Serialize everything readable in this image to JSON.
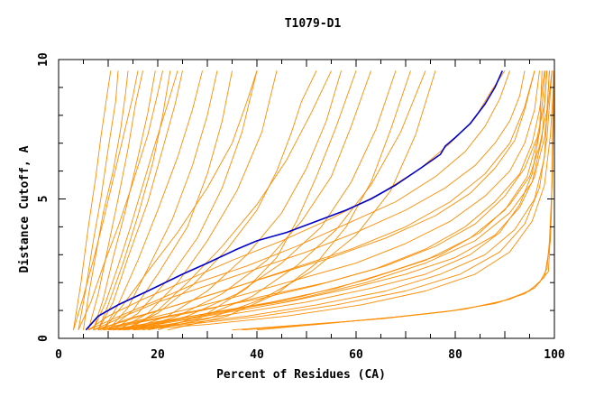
{
  "chart_data": {
    "type": "line",
    "title": "T1079-D1",
    "xlabel": "Percent of Residues (CA)",
    "ylabel": "Distance Cutoff, A",
    "xlim": [
      0,
      100
    ],
    "ylim": [
      0,
      10
    ],
    "x_ticks": [
      0,
      20,
      40,
      60,
      80,
      100
    ],
    "y_ticks": [
      0,
      5,
      10
    ],
    "grid": false,
    "legend": "none",
    "colors": {
      "models": "#ff8c00",
      "highlight": "#0000cc",
      "axis": "#000000"
    },
    "highlight_series": {
      "x": [
        5.5,
        8,
        12,
        18,
        25,
        30,
        36,
        40,
        46,
        52,
        58,
        63,
        68,
        73,
        77,
        78,
        80,
        83,
        86,
        88,
        89.5
      ],
      "y": [
        0.3,
        0.8,
        1.2,
        1.7,
        2.3,
        2.7,
        3.2,
        3.5,
        3.8,
        4.2,
        4.6,
        5.0,
        5.5,
        6.1,
        6.6,
        6.9,
        7.2,
        7.7,
        8.4,
        9.0,
        9.6
      ]
    },
    "series": [
      {
        "x": [
          5,
          6,
          7.5,
          9,
          11,
          12.5,
          13.5,
          14
        ],
        "y": [
          0.3,
          1.5,
          3,
          4.5,
          6,
          7.5,
          8.8,
          9.6
        ]
      },
      {
        "x": [
          4,
          5.5,
          7,
          8.5,
          10,
          11.5,
          12
        ],
        "y": [
          0.3,
          1.8,
          3.5,
          5,
          6.8,
          8.5,
          9.6
        ]
      },
      {
        "x": [
          3,
          4.5,
          6,
          7.5,
          8.5,
          10,
          10.5
        ],
        "y": [
          0.3,
          2,
          4,
          5.8,
          7.2,
          9,
          9.6
        ]
      },
      {
        "x": [
          6,
          8,
          10,
          12,
          14,
          15.5,
          17
        ],
        "y": [
          0.3,
          1.6,
          3.3,
          5,
          6.8,
          8.4,
          9.6
        ]
      },
      {
        "x": [
          7,
          9,
          11,
          13.5,
          16,
          18,
          19.5
        ],
        "y": [
          0.3,
          1.4,
          2.9,
          4.6,
          6.5,
          8.1,
          9.6
        ]
      },
      {
        "x": [
          8,
          10,
          13,
          16,
          19,
          21,
          22.5
        ],
        "y": [
          0.3,
          1.2,
          2.7,
          4.4,
          6.3,
          8,
          9.6
        ]
      },
      {
        "x": [
          8,
          11,
          14,
          18,
          21,
          23.5,
          25
        ],
        "y": [
          0.3,
          1.3,
          2.9,
          4.9,
          6.8,
          8.4,
          9.6
        ]
      },
      {
        "x": [
          9,
          12,
          16,
          20,
          24,
          27,
          29
        ],
        "y": [
          0.3,
          1.2,
          2.8,
          4.6,
          6.5,
          8.2,
          9.6
        ]
      },
      {
        "x": [
          10,
          14,
          18,
          23,
          27,
          30,
          32
        ],
        "y": [
          0.3,
          1.1,
          2.5,
          4.3,
          6.2,
          8,
          9.6
        ]
      },
      {
        "x": [
          10,
          15,
          20,
          26,
          30,
          33,
          35
        ],
        "y": [
          0.3,
          1,
          2.3,
          4,
          5.9,
          7.8,
          9.6
        ]
      },
      {
        "x": [
          11,
          16,
          22,
          28,
          33,
          37,
          40
        ],
        "y": [
          0.3,
          0.9,
          2.1,
          3.6,
          5.4,
          7.4,
          9.6
        ]
      },
      {
        "x": [
          12,
          18,
          24,
          30,
          36,
          41,
          44
        ],
        "y": [
          0.3,
          0.9,
          2,
          3.5,
          5.3,
          7.4,
          9.6
        ]
      },
      {
        "x": [
          13,
          20,
          27,
          34,
          40,
          44,
          47,
          49,
          52
        ],
        "y": [
          0.3,
          0.9,
          1.9,
          3.2,
          4.6,
          6,
          7.4,
          8.5,
          9.6
        ]
      },
      {
        "x": [
          14,
          22,
          30,
          38,
          45,
          50,
          54,
          57
        ],
        "y": [
          0.3,
          0.8,
          1.7,
          3,
          4.5,
          6.1,
          7.8,
          9.6
        ]
      },
      {
        "x": [
          15,
          24,
          33,
          42,
          49,
          55,
          59,
          63
        ],
        "y": [
          0.3,
          0.8,
          1.6,
          2.8,
          4.2,
          5.8,
          7.6,
          9.6
        ]
      },
      {
        "x": [
          16,
          26,
          36,
          45,
          53,
          59,
          64,
          68
        ],
        "y": [
          0.3,
          0.8,
          1.6,
          2.7,
          4,
          5.6,
          7.5,
          9.6
        ]
      },
      {
        "x": [
          17,
          28,
          39,
          48,
          56,
          63,
          69,
          74
        ],
        "y": [
          0.3,
          0.7,
          1.5,
          2.6,
          3.9,
          5.5,
          7.4,
          9.6
        ]
      },
      {
        "x": [
          18,
          30,
          41,
          51,
          60,
          67,
          72,
          76
        ],
        "y": [
          0.3,
          0.7,
          1.4,
          2.4,
          3.7,
          5.3,
          7.3,
          9.6
        ]
      },
      {
        "x": [
          7,
          12,
          20,
          30,
          40,
          50,
          60,
          70,
          78,
          84,
          88,
          91,
          93,
          94
        ],
        "y": [
          0.3,
          0.7,
          1.3,
          1.9,
          2.5,
          3.1,
          3.8,
          4.6,
          5.4,
          6.2,
          7,
          7.8,
          8.7,
          9.6
        ]
      },
      {
        "x": [
          7,
          13,
          22,
          33,
          44,
          55,
          66,
          76,
          83,
          88,
          92,
          94,
          96
        ],
        "y": [
          0.3,
          0.6,
          1.1,
          1.7,
          2.3,
          2.9,
          3.6,
          4.4,
          5.2,
          6.1,
          7.1,
          8.2,
          9.6
        ]
      },
      {
        "x": [
          8,
          15,
          25,
          36,
          48,
          60,
          70,
          79,
          86,
          91,
          94,
          96,
          97
        ],
        "y": [
          0.3,
          0.6,
          1,
          1.5,
          2.1,
          2.7,
          3.4,
          4.2,
          5.1,
          6,
          7,
          8.2,
          9.6
        ]
      },
      {
        "x": [
          8,
          16,
          28,
          40,
          52,
          64,
          74,
          82,
          88,
          93,
          95.5,
          97,
          98
        ],
        "y": [
          0.3,
          0.6,
          1,
          1.4,
          1.9,
          2.5,
          3.2,
          4,
          4.9,
          5.9,
          7,
          8.2,
          9.6
        ]
      },
      {
        "x": [
          9,
          18,
          30,
          43,
          56,
          67,
          77,
          85,
          91,
          95,
          97,
          98.5,
          99
        ],
        "y": [
          0.3,
          0.5,
          0.9,
          1.3,
          1.8,
          2.4,
          3,
          3.8,
          4.8,
          5.8,
          6.9,
          8.2,
          9.6
        ]
      },
      {
        "x": [
          10,
          20,
          33,
          46,
          59,
          70,
          80,
          88,
          93,
          96,
          98,
          99.5
        ],
        "y": [
          0.3,
          0.5,
          0.9,
          1.3,
          1.8,
          2.3,
          2.9,
          3.7,
          4.7,
          5.8,
          7.2,
          9.6
        ]
      },
      {
        "x": [
          6,
          11,
          19,
          28,
          38,
          48,
          58,
          68,
          76,
          82,
          86,
          89,
          91
        ],
        "y": [
          0.3,
          0.7,
          1.3,
          2,
          2.6,
          3.3,
          4.1,
          4.9,
          5.8,
          6.7,
          7.6,
          8.6,
          9.6
        ]
      },
      {
        "x": [
          6,
          10,
          17,
          26,
          35,
          45,
          55,
          65,
          73,
          79,
          84,
          87,
          90
        ],
        "y": [
          0.3,
          0.8,
          1.4,
          2.1,
          2.8,
          3.5,
          4.3,
          5.2,
          6.1,
          7,
          7.9,
          8.8,
          9.6
        ]
      },
      {
        "x": [
          9,
          17,
          29,
          41,
          54,
          66,
          76,
          84,
          90,
          94,
          96.5,
          98,
          98.5
        ],
        "y": [
          0.3,
          0.6,
          1,
          1.5,
          2,
          2.6,
          3.3,
          4.1,
          5.1,
          6.1,
          7.2,
          8.4,
          9.6
        ]
      },
      {
        "x": [
          11,
          22,
          36,
          50,
          63,
          74,
          83,
          89,
          93,
          95.5,
          97,
          97.5
        ],
        "y": [
          0.3,
          0.5,
          0.9,
          1.3,
          1.8,
          2.3,
          3,
          3.8,
          4.8,
          5.9,
          7.4,
          9.6
        ]
      },
      {
        "x": [
          12,
          24,
          38,
          52,
          66,
          77,
          86,
          92,
          96,
          98,
          99
        ],
        "y": [
          0.3,
          0.5,
          0.8,
          1.2,
          1.7,
          2.3,
          3,
          3.9,
          5,
          6.5,
          9.6
        ]
      },
      {
        "x": [
          10,
          20,
          34,
          48,
          62,
          74,
          84,
          91,
          95.5,
          97.5,
          98.5
        ],
        "y": [
          0.3,
          0.6,
          1,
          1.4,
          2,
          2.7,
          3.5,
          4.5,
          5.6,
          7.2,
          9.6
        ]
      },
      {
        "x": [
          13,
          26,
          41,
          56,
          70,
          81,
          89,
          94,
          97,
          98.5,
          99.5
        ],
        "y": [
          0.3,
          0.5,
          0.8,
          1.2,
          1.7,
          2.3,
          3.1,
          4.1,
          5.4,
          7.2,
          9.6
        ]
      },
      {
        "x": [
          8,
          14,
          24,
          35,
          47,
          59,
          70,
          79,
          86,
          91,
          94,
          96
        ],
        "y": [
          0.3,
          0.7,
          1.2,
          1.8,
          2.5,
          3.2,
          4,
          4.9,
          5.9,
          7,
          8.3,
          9.6
        ]
      },
      {
        "x": [
          12,
          22,
          35,
          49,
          62,
          74,
          83,
          90,
          94.5,
          97,
          98.2
        ],
        "y": [
          0.3,
          0.6,
          1,
          1.5,
          2.1,
          2.8,
          3.6,
          4.6,
          5.8,
          7.4,
          9.6
        ]
      },
      {
        "x": [
          15,
          30,
          46,
          61,
          74,
          84,
          91,
          95.5,
          98,
          99.2,
          100
        ],
        "y": [
          0.3,
          0.5,
          0.8,
          1.2,
          1.7,
          2.3,
          3.1,
          4.2,
          5.5,
          7.3,
          9.6
        ]
      },
      {
        "x": [
          35,
          50,
          65,
          78,
          88,
          94,
          97,
          98.5,
          99,
          99.5,
          99.8,
          100
        ],
        "y": [
          0.3,
          0.5,
          0.7,
          0.95,
          1.25,
          1.6,
          2,
          2.5,
          3.5,
          5.5,
          7.5,
          9.6
        ]
      },
      {
        "x": [
          37,
          52,
          67,
          80,
          89,
          95,
          98,
          99.2,
          99.6,
          100
        ],
        "y": [
          0.3,
          0.5,
          0.75,
          1,
          1.3,
          1.7,
          2.2,
          3.5,
          6,
          9.6
        ]
      },
      {
        "x": [
          40,
          55,
          70,
          82,
          91,
          96,
          98.8,
          99.4,
          99.8
        ],
        "y": [
          0.3,
          0.55,
          0.8,
          1.05,
          1.4,
          1.8,
          2.4,
          4.5,
          9.6
        ]
      },
      {
        "x": [
          3,
          5,
          7,
          9,
          11,
          13,
          15,
          16
        ],
        "y": [
          0.3,
          1.5,
          2.8,
          4.2,
          5.7,
          7.2,
          8.7,
          9.6
        ]
      },
      {
        "x": [
          4,
          6.5,
          9,
          12,
          15,
          18,
          20,
          21
        ],
        "y": [
          0.3,
          1.3,
          2.6,
          4,
          5.6,
          7.3,
          8.8,
          9.6
        ]
      },
      {
        "x": [
          9,
          13,
          18,
          24,
          30,
          35,
          38,
          40
        ],
        "y": [
          0.3,
          1.2,
          2.4,
          3.8,
          5.4,
          7,
          8.5,
          9.6
        ]
      },
      {
        "x": [
          20,
          30,
          38,
          44,
          48,
          52,
          56,
          60
        ],
        "y": [
          0.3,
          0.9,
          1.8,
          2.9,
          4.2,
          5.8,
          7.6,
          9.6
        ]
      },
      {
        "x": [
          22,
          34,
          44,
          52,
          58,
          63,
          67,
          71
        ],
        "y": [
          0.3,
          0.8,
          1.6,
          2.7,
          4,
          5.6,
          7.5,
          9.6
        ]
      },
      {
        "x": [
          14,
          20,
          26,
          33,
          40,
          46,
          51,
          55
        ],
        "y": [
          0.3,
          1,
          2,
          3.3,
          4.8,
          6.4,
          8.1,
          9.6
        ]
      },
      {
        "x": [
          7,
          9.5,
          12,
          14.5,
          17,
          19.5,
          22,
          24
        ],
        "y": [
          0.3,
          1.3,
          2.6,
          4,
          5.5,
          7,
          8.4,
          9.6
        ]
      }
    ]
  }
}
